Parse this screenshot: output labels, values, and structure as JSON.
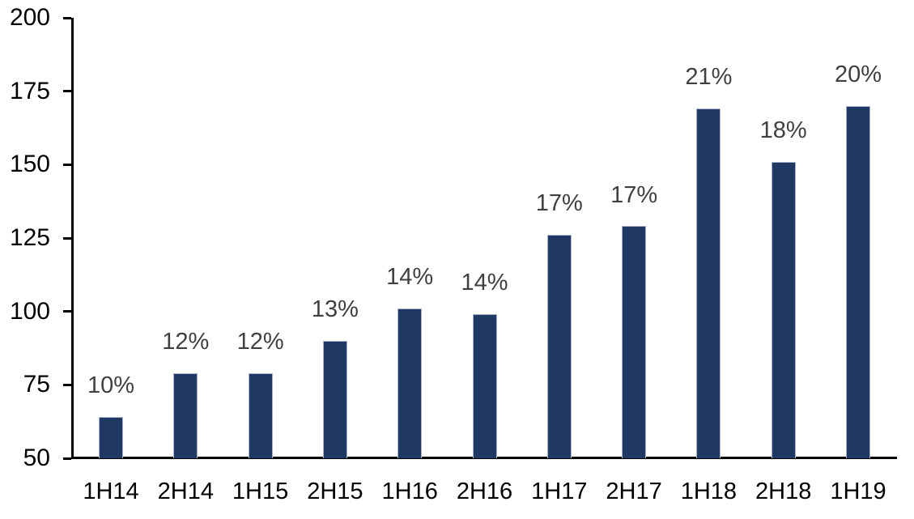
{
  "chart_data": {
    "type": "bar",
    "title": "",
    "xlabel": "",
    "ylabel": "",
    "categories": [
      "1H14",
      "2H14",
      "1H15",
      "2H15",
      "1H16",
      "2H16",
      "1H17",
      "2H17",
      "1H18",
      "2H18",
      "1H19"
    ],
    "values": [
      64,
      79,
      79,
      90,
      101,
      99,
      126,
      129,
      169,
      151,
      170
    ],
    "bar_labels": [
      "10%",
      "12%",
      "12%",
      "13%",
      "14%",
      "14%",
      "17%",
      "17%",
      "21%",
      "18%",
      "20%"
    ],
    "ylim": [
      50,
      200
    ],
    "yticks": [
      200,
      175,
      150,
      125,
      100,
      75,
      50
    ],
    "grid": false,
    "legend": "none",
    "colors": {
      "bar_fill": "#1f3864",
      "bar_border": "#a9b4ca",
      "axis": "#000000",
      "axis_labels": "#000000",
      "data_labels": "#404040",
      "background": "#ffffff"
    }
  }
}
